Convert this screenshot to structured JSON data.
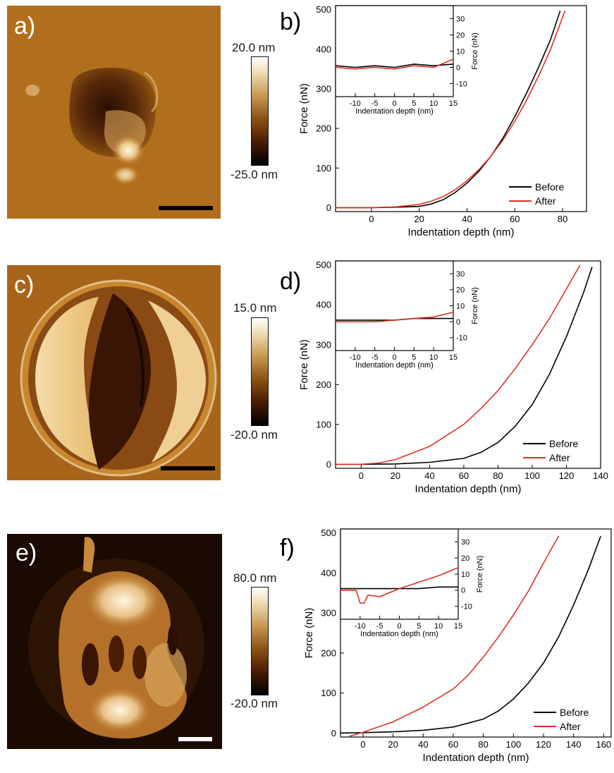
{
  "figure": {
    "panels": [
      {
        "letter": "a)",
        "cb_top": "20.0 nm",
        "cb_bottom": "-25.0 nm",
        "scalebar_color": "#000000"
      },
      {
        "letter": "c)",
        "cb_top": "15.0 nm",
        "cb_bottom": "-20.0 nm",
        "scalebar_color": "#000000"
      },
      {
        "letter": "e)",
        "cb_top": "80.0 nm",
        "cb_bottom": "-20.0 nm",
        "scalebar_color": "#ffffff"
      }
    ],
    "plot_letters": [
      "b)",
      "d)",
      "f)"
    ]
  },
  "chart_data": [
    {
      "type": "line",
      "panel": "b)",
      "xlabel": "Indentation depth (nm)",
      "ylabel": "Force (nN)",
      "xlim": [
        -15,
        90
      ],
      "ylim": [
        -10,
        510
      ],
      "xticks": [
        0,
        20,
        40,
        60,
        80
      ],
      "yticks": [
        0,
        100,
        200,
        300,
        400,
        500
      ],
      "legend": "bottom-right",
      "series": [
        {
          "name": "Before",
          "color": "#000000",
          "x": [
            -15,
            0,
            10,
            20,
            25,
            30,
            35,
            40,
            45,
            50,
            55,
            60,
            65,
            70,
            75,
            79
          ],
          "y": [
            0,
            0,
            1,
            3,
            9,
            20,
            38,
            62,
            92,
            130,
            175,
            230,
            290,
            355,
            425,
            497
          ]
        },
        {
          "name": "After",
          "color": "#e03020",
          "x": [
            -15,
            0,
            10,
            20,
            25,
            30,
            35,
            40,
            45,
            50,
            55,
            60,
            65,
            70,
            75,
            81
          ],
          "y": [
            0,
            0,
            2,
            8,
            16,
            28,
            45,
            68,
            96,
            130,
            170,
            218,
            272,
            333,
            400,
            497
          ]
        }
      ],
      "inset": {
        "xlabel": "Indentation depth (nm)",
        "ylabel": "Force (nN)",
        "xlim": [
          -15,
          15
        ],
        "ylim": [
          -18,
          38
        ],
        "xticks": [
          -10,
          -5,
          0,
          5,
          10,
          15
        ],
        "yticks": [
          -10,
          0,
          10,
          20,
          30
        ],
        "series": [
          {
            "name": "Before",
            "color": "#000000",
            "x": [
              -15,
              -10,
              -5,
              0,
              5,
              10,
              15
            ],
            "y": [
              1,
              0,
              1,
              0,
              2,
              1,
              2
            ]
          },
          {
            "name": "After",
            "color": "#e03020",
            "x": [
              -15,
              -10,
              -5,
              0,
              5,
              10,
              15
            ],
            "y": [
              0,
              -1,
              0,
              -1,
              1,
              0,
              5
            ]
          }
        ]
      }
    },
    {
      "type": "line",
      "panel": "d)",
      "xlabel": "Indentation depth (nm)",
      "ylabel": "Force (nN)",
      "xlim": [
        -15,
        140
      ],
      "ylim": [
        -10,
        510
      ],
      "xticks": [
        0,
        20,
        40,
        60,
        80,
        100,
        120,
        140
      ],
      "yticks": [
        0,
        100,
        200,
        300,
        400,
        500
      ],
      "legend": "bottom-right",
      "series": [
        {
          "name": "Before",
          "color": "#000000",
          "x": [
            -15,
            0,
            20,
            40,
            60,
            70,
            80,
            90,
            100,
            110,
            120,
            130,
            135
          ],
          "y": [
            0,
            0,
            1,
            5,
            15,
            30,
            55,
            95,
            150,
            225,
            320,
            430,
            495
          ]
        },
        {
          "name": "After",
          "color": "#e03020",
          "x": [
            -15,
            0,
            10,
            20,
            40,
            60,
            70,
            80,
            90,
            100,
            110,
            120,
            128
          ],
          "y": [
            0,
            0,
            3,
            12,
            45,
            100,
            140,
            185,
            240,
            300,
            365,
            440,
            500
          ]
        }
      ],
      "inset": {
        "xlabel": "Indentation depth (nm)",
        "ylabel": "Force (nN)",
        "xlim": [
          -15,
          15
        ],
        "ylim": [
          -18,
          38
        ],
        "xticks": [
          -10,
          -5,
          0,
          5,
          10,
          15
        ],
        "yticks": [
          -10,
          0,
          10,
          20,
          30
        ],
        "series": [
          {
            "name": "Before",
            "color": "#000000",
            "x": [
              -15,
              -10,
              -5,
              0,
              5,
              10,
              15
            ],
            "y": [
              1,
              1,
              1,
              1,
              2,
              2,
              2
            ]
          },
          {
            "name": "After",
            "color": "#e03020",
            "x": [
              -15,
              -10,
              -5,
              0,
              5,
              10,
              15
            ],
            "y": [
              0,
              0,
              0,
              1,
              2,
              3,
              6
            ]
          }
        ]
      }
    },
    {
      "type": "line",
      "panel": "f)",
      "xlabel": "Indentation depth (nm)",
      "ylabel": "Force (nN)",
      "xlim": [
        -15,
        165
      ],
      "ylim": [
        -10,
        510
      ],
      "xticks": [
        0,
        20,
        40,
        60,
        80,
        100,
        120,
        140,
        160
      ],
      "yticks": [
        0,
        100,
        200,
        300,
        400,
        500
      ],
      "legend": "bottom-right",
      "series": [
        {
          "name": "Before",
          "color": "#000000",
          "x": [
            -15,
            0,
            20,
            40,
            60,
            80,
            90,
            100,
            110,
            120,
            130,
            140,
            150,
            158
          ],
          "y": [
            0,
            1,
            3,
            7,
            15,
            35,
            55,
            85,
            125,
            175,
            240,
            320,
            410,
            492
          ]
        },
        {
          "name": "After",
          "color": "#e03020",
          "x": [
            -9,
            0,
            20,
            40,
            60,
            70,
            80,
            90,
            100,
            110,
            120,
            130
          ],
          "y": [
            -8,
            2,
            28,
            65,
            110,
            145,
            190,
            240,
            295,
            355,
            425,
            492
          ]
        }
      ],
      "inset": {
        "xlabel": "Indentation depth (nm)",
        "ylabel": "Force (nN)",
        "xlim": [
          -15,
          15
        ],
        "ylim": [
          -18,
          38
        ],
        "xticks": [
          -10,
          -5,
          0,
          5,
          10,
          15
        ],
        "yticks": [
          -10,
          0,
          10,
          20,
          30
        ],
        "series": [
          {
            "name": "Before",
            "color": "#000000",
            "x": [
              -15,
              -10,
              -5,
              0,
              5,
              10,
              15
            ],
            "y": [
              1,
              1,
              1,
              1,
              1,
              2,
              2
            ]
          },
          {
            "name": "After",
            "color": "#e03020",
            "x": [
              -15,
              -11,
              -10,
              -9,
              -8,
              -5,
              0,
              5,
              10,
              14,
              15
            ],
            "y": [
              0,
              0,
              -8,
              -8,
              -3,
              -4,
              1,
              5,
              9,
              13,
              14
            ]
          }
        ]
      }
    }
  ]
}
